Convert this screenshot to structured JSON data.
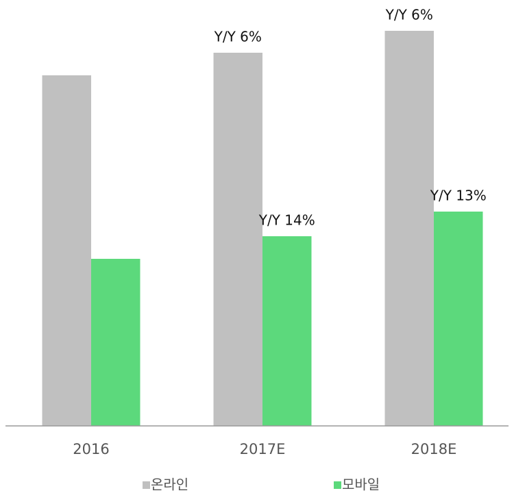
{
  "chart_data": {
    "type": "bar",
    "categories": [
      "2016",
      "2017E",
      "2018E"
    ],
    "series": [
      {
        "name": "온라인",
        "color": "#c0c0c0",
        "values": [
          512,
          545,
          577
        ],
        "annotations": [
          null,
          "Y/Y 6%",
          "Y/Y 6%"
        ]
      },
      {
        "name": "모바일",
        "color": "#5cd97c",
        "values": [
          244,
          277,
          313
        ],
        "annotations": [
          null,
          "Y/Y 14%",
          "Y/Y 13%"
        ]
      }
    ],
    "ylim": [
      0,
      600
    ]
  }
}
